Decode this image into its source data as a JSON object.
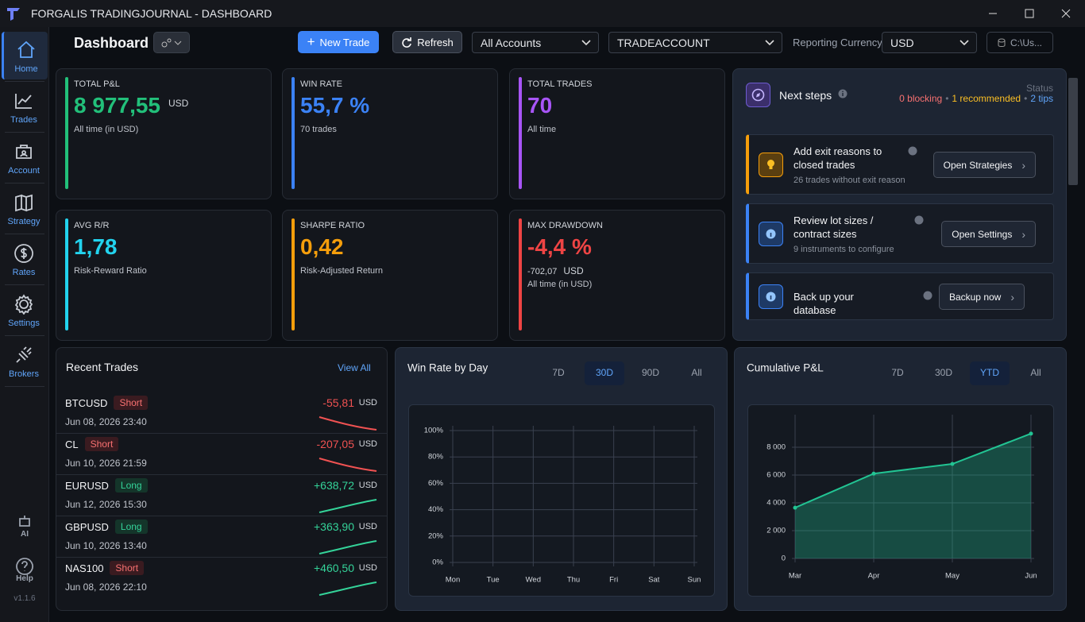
{
  "window": {
    "title": "FORGALIS TRADINGJOURNAL - DASHBOARD"
  },
  "sidebar": {
    "items": [
      "Home",
      "Trades",
      "Account",
      "Strategy",
      "Rates",
      "Settings",
      "Brokers"
    ],
    "active": 0,
    "footer": [
      "AI",
      "Help"
    ],
    "version": "v1.1.6"
  },
  "toolbar": {
    "title": "Dashboard",
    "new_trade": "New Trade",
    "refresh": "Refresh",
    "accounts": "All Accounts",
    "account": "TRADEACCOUNT",
    "currency_label": "Reporting Currency:",
    "currency": "USD",
    "path": "C:\\Us..."
  },
  "kpis": [
    {
      "label": "TOTAL P&L",
      "value": "8 977,55",
      "unit": "USD",
      "sub": "All time (in USD)",
      "color": "#22c07a"
    },
    {
      "label": "WIN RATE",
      "value": "55,7 %",
      "sub": "70 trades",
      "color": "#3b82f6"
    },
    {
      "label": "TOTAL TRADES",
      "value": "70",
      "sub": "All time",
      "color": "#a855f7"
    },
    {
      "label": "AVG R/R",
      "value": "1,78",
      "sub": "Risk-Reward Ratio",
      "color": "#22d3ee"
    },
    {
      "label": "SHARPE RATIO",
      "value": "0,42",
      "sub": "Risk-Adjusted Return",
      "color": "#f59e0b"
    },
    {
      "label": "MAX DRAWDOWN",
      "value": "-4,4 %",
      "amount": "-702,07",
      "unit": "USD",
      "sub": "All time (in USD)",
      "color": "#ef4444"
    }
  ],
  "next_steps": {
    "title": "Next steps",
    "status_label": "Status",
    "separator": "•",
    "status": [
      {
        "text": "0 blocking",
        "color": "#f87171"
      },
      {
        "text": "1 recommended",
        "color": "#fbbf24"
      },
      {
        "text": "2 tips",
        "color": "#60a5fa"
      }
    ],
    "items": [
      {
        "title": "Add exit reasons to closed trades",
        "sub": "26 trades without exit reason",
        "button": "Open Strategies",
        "color": "#f59e0b"
      },
      {
        "title": "Review lot sizes / contract sizes",
        "sub": "9 instruments to configure",
        "button": "Open Settings",
        "color": "#3b82f6"
      },
      {
        "title": "Back up your database",
        "button": "Backup now",
        "color": "#3b82f6"
      }
    ]
  },
  "recent_trades": {
    "title": "Recent Trades",
    "view_all": "View All",
    "trades": [
      {
        "symbol": "BTCUSD",
        "side": "Short",
        "pnl": "-55,81",
        "currency": "USD",
        "date": "Jun 08, 2026 23:40"
      },
      {
        "symbol": "CL",
        "side": "Short",
        "pnl": "-207,05",
        "currency": "USD",
        "date": "Jun 10, 2026 21:59"
      },
      {
        "symbol": "EURUSD",
        "side": "Long",
        "pnl": "+638,72",
        "currency": "USD",
        "date": "Jun 12, 2026 15:30"
      },
      {
        "symbol": "GBPUSD",
        "side": "Long",
        "pnl": "+363,90",
        "currency": "USD",
        "date": "Jun 10, 2026 13:40"
      },
      {
        "symbol": "NAS100",
        "side": "Short",
        "pnl": "+460,50",
        "currency": "USD",
        "date": "Jun 08, 2026 22:10"
      }
    ]
  },
  "win_rate_chart": {
    "type": "line",
    "title": "Win Rate by Day",
    "ranges": [
      "7D",
      "30D",
      "90D",
      "All"
    ],
    "active_range": 1,
    "categories": [
      "Mon",
      "Tue",
      "Wed",
      "Thu",
      "Fri",
      "Sat",
      "Sun"
    ],
    "ylim": [
      0,
      100
    ],
    "yticks": [
      {
        "value": 0,
        "label": "0%"
      },
      {
        "value": 20,
        "label": "20%"
      },
      {
        "value": 40,
        "label": "40%"
      },
      {
        "value": 60,
        "label": "60%"
      },
      {
        "value": 80,
        "label": "80%"
      },
      {
        "value": 100,
        "label": "100%"
      }
    ],
    "grid": true
  },
  "pnl_chart": {
    "type": "area",
    "title": "Cumulative P&L",
    "ranges": [
      "7D",
      "30D",
      "YTD",
      "All"
    ],
    "active_range": 2,
    "categories": [
      "Mar",
      "Apr",
      "May",
      "Jun"
    ],
    "values": [
      3650,
      6100,
      6800,
      8980
    ],
    "color": "#22c493",
    "ylim": [
      0,
      10000
    ],
    "yticks": [
      0,
      {
        "value": 2000,
        "label": "2 000"
      },
      {
        "value": 4000,
        "label": "4 000"
      },
      {
        "value": 6000,
        "label": "6 000"
      },
      {
        "value": 8000,
        "label": "8 000"
      }
    ],
    "grid": true
  }
}
